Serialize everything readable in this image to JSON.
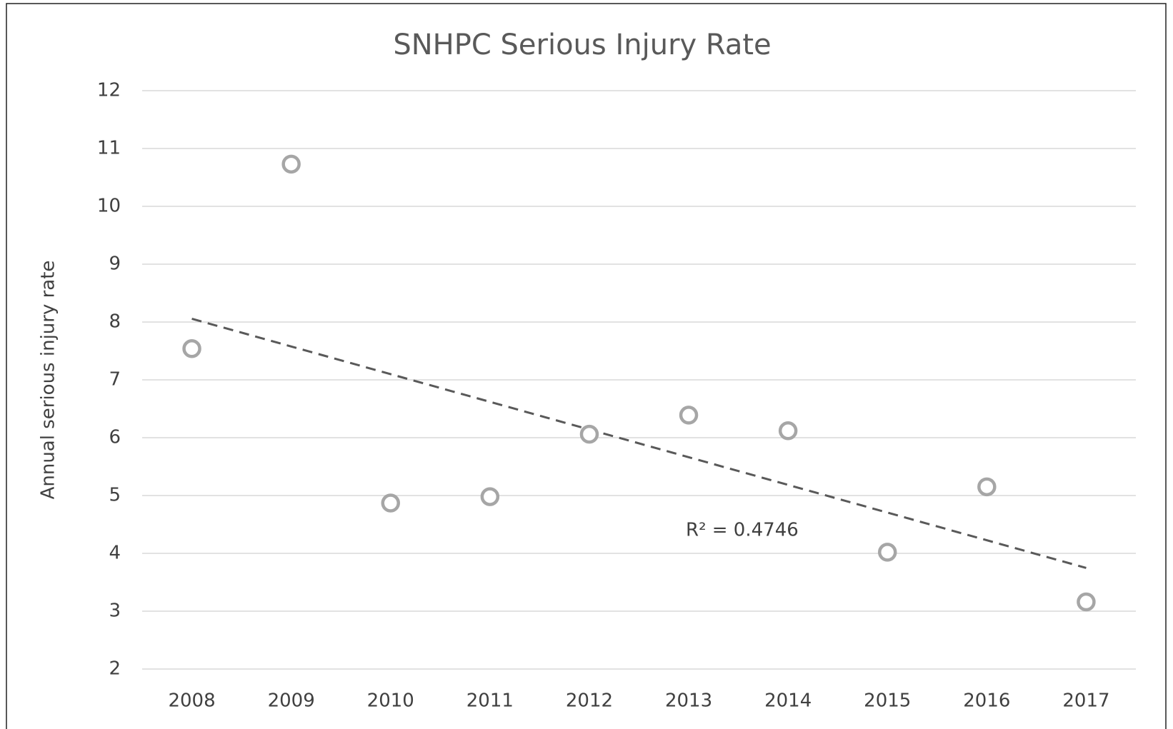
{
  "chart_data": {
    "type": "scatter",
    "title": "SNHPC Serious Injury Rate",
    "y_label": "Annual serious injury rate",
    "categories": [
      "2008",
      "2009",
      "2010",
      "2011",
      "2012",
      "2013",
      "2014",
      "2015",
      "2016",
      "2017"
    ],
    "series": [
      {
        "name": "Serious injury rate",
        "color": "#a6a6a6",
        "values": [
          7.54,
          10.73,
          4.87,
          4.98,
          6.06,
          6.39,
          6.12,
          4.02,
          5.15,
          3.16
        ]
      }
    ],
    "trendline": {
      "type": "linear",
      "color": "#595959",
      "annotation": "R² = 0.4746"
    },
    "ylim": [
      2,
      12
    ],
    "yticks": [
      2,
      3,
      4,
      5,
      6,
      7,
      8,
      9,
      10,
      11,
      12
    ],
    "grid": true
  }
}
